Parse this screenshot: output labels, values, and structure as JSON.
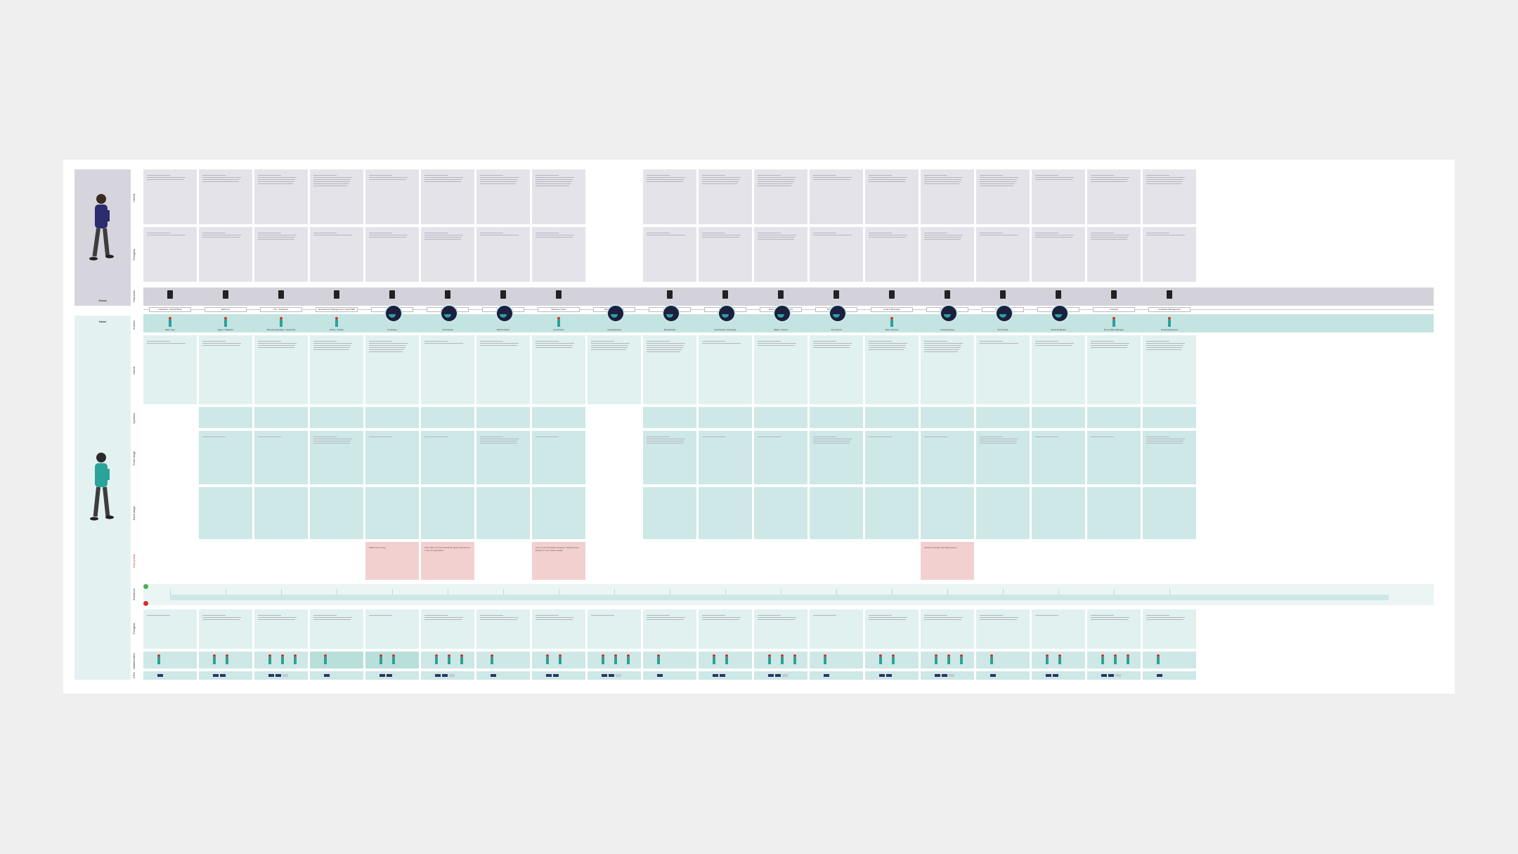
{
  "personas": {
    "guest": {
      "label": "Guest",
      "figure": "walking-man-purple-sweater-icon"
    },
    "hotel": {
      "label": "Hotel",
      "figure": "walking-man-teal-jacket-icon"
    }
  },
  "lane_labels": {
    "guest_needs": "Needs",
    "guest_thoughts": "Thoughts",
    "guest_channels": "Channels",
    "hotel_actions": "Actions",
    "hotel_needs": "Needs",
    "hotel_systems": "Systems",
    "hotel_front_stage": "Front stage",
    "hotel_back_stage": "Back stage",
    "pain_points": "Pain points",
    "emotions": "Emotions",
    "opportunities": "Thoughts",
    "stakeholders": "Stakeholders",
    "kpis": "KPIs"
  },
  "stages": [
    "Inspiration / Search/Book",
    "Welcome",
    "Pre - Departure",
    "Requirement Management / Upsell RM",
    "Go",
    "Arrival at Hotel",
    "Check-in Desk",
    "Welcome Guest",
    "Welcome Information",
    "Room Service",
    "Services",
    "Extension / Room Service",
    "Departure Services",
    "Food & Beverage",
    "Shuttle Services",
    "Room Checkout",
    "Check-out",
    "Farewell",
    "Feedback Management"
  ],
  "touchpoints": [
    "Web / App",
    "Agent / Marketer",
    "Revenue Manager / Guest Mtr",
    "Phone / Online",
    "Concierge",
    "Front Desk",
    "Bell Services",
    "Front Desk",
    "Housekeeping",
    "Receptionist",
    "Front Desk / Concierge",
    "Waiter / Server",
    "Front Desk",
    "Room Service",
    "Housekeeping",
    "Front Desk",
    "Guest Relations",
    "Front Office Manager",
    "Guest Experience"
  ],
  "pain_points": [
    "Wait time too long",
    "Front desk not informed about guest preferences / Lack of preparation",
    "Lack of communication between departments / Delays in room status update",
    "Check-out delays and billing errors"
  ],
  "colors": {
    "guest_band": "#d6d5dd",
    "hotel_band": "#e3f2f1",
    "cell_teal": "#cde8e6",
    "pain": "#f3d0d0",
    "accent_dark": "#1c1f3f",
    "accent_teal": "#2aa39a"
  }
}
